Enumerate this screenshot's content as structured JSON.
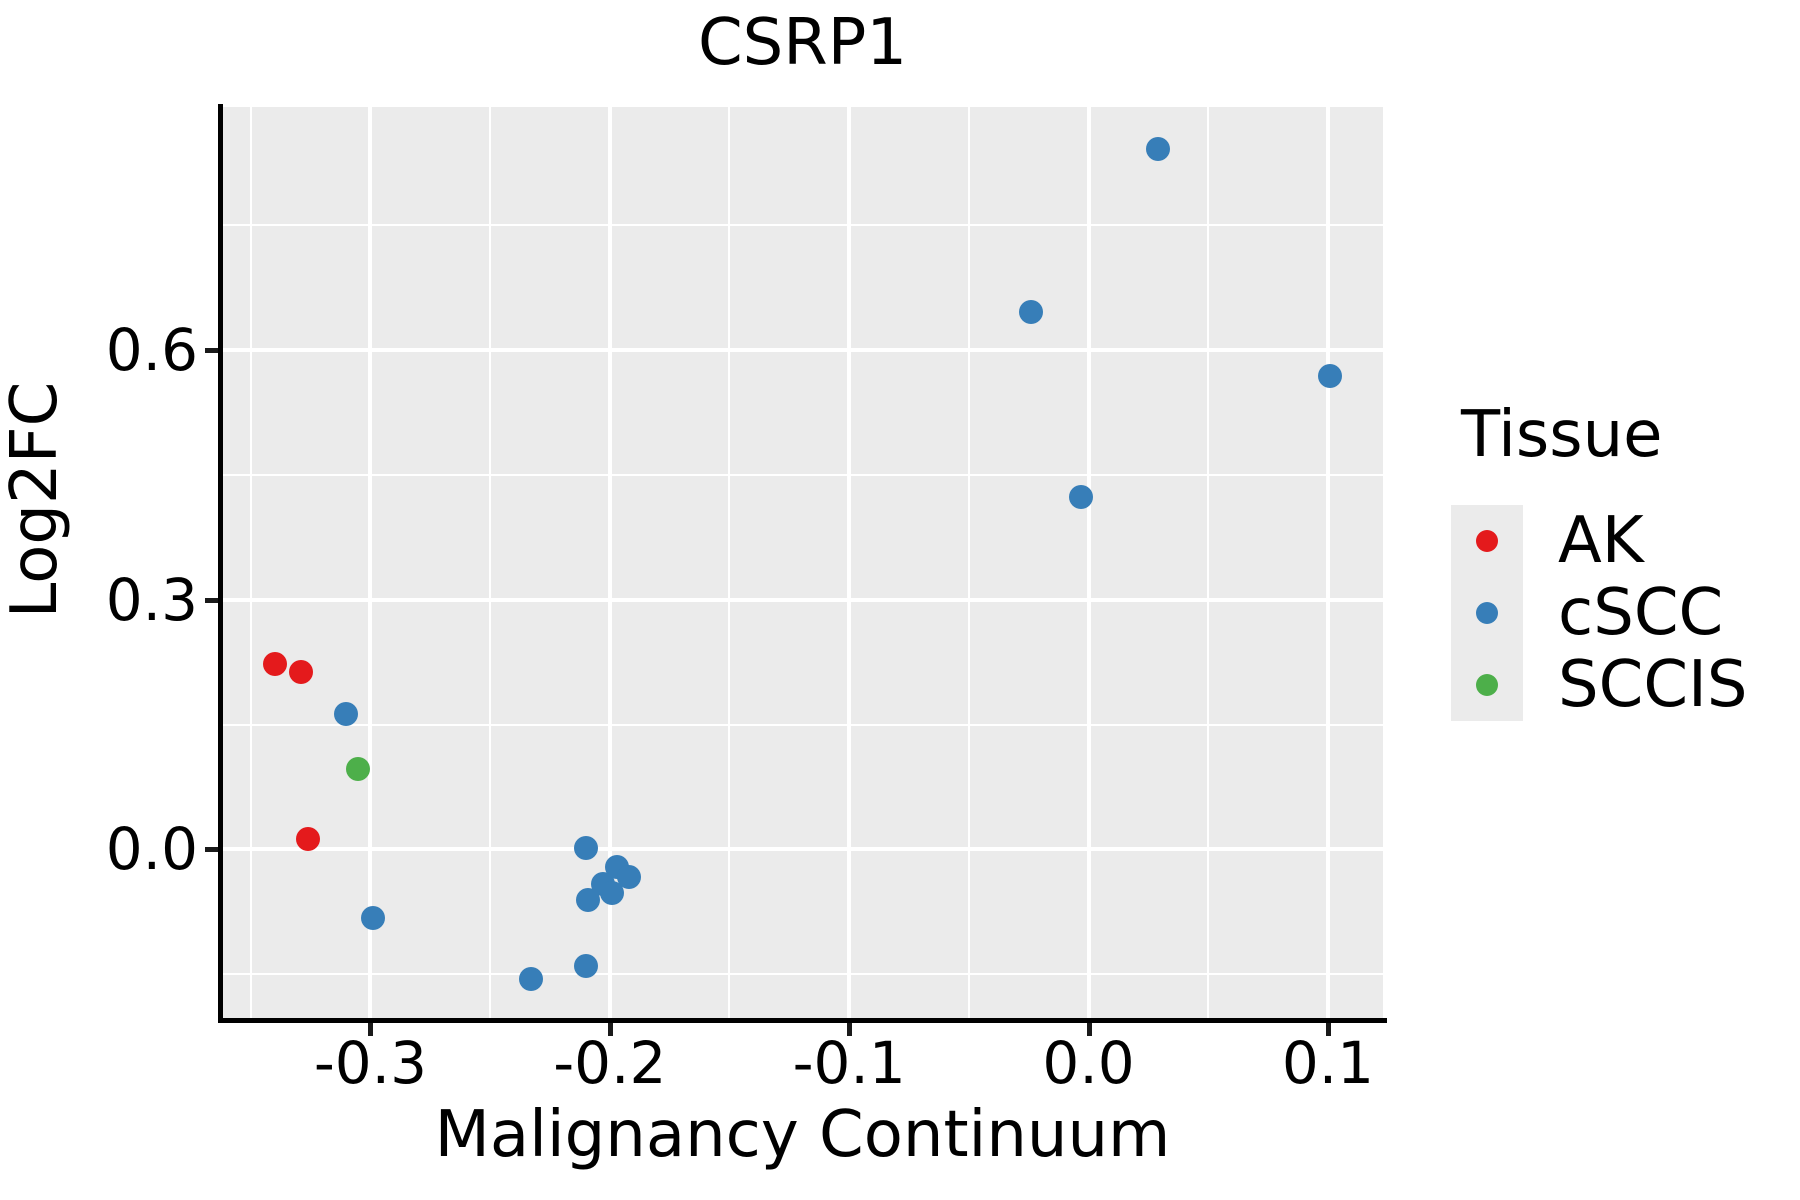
{
  "title": "CSRP1",
  "axes": {
    "x": {
      "label": "Malignancy Continuum",
      "range": [
        -0.362,
        0.123
      ],
      "ticks": [
        {
          "value": -0.3,
          "label": "-0.3"
        },
        {
          "value": -0.2,
          "label": "-0.2"
        },
        {
          "value": -0.1,
          "label": "-0.1"
        },
        {
          "value": 0.0,
          "label": "0.0"
        },
        {
          "value": 0.1,
          "label": "0.1"
        }
      ],
      "minor_gridlines": [
        -0.35,
        -0.25,
        -0.15,
        -0.05,
        0.05
      ]
    },
    "y": {
      "label": "Log2FC",
      "range": [
        -0.205,
        0.892
      ],
      "ticks": [
        {
          "value": 0.0,
          "label": "0.0"
        },
        {
          "value": 0.3,
          "label": "0.3"
        },
        {
          "value": 0.6,
          "label": "0.6"
        }
      ],
      "minor_gridlines": [
        -0.15,
        0.15,
        0.45,
        0.75
      ]
    }
  },
  "legend": {
    "title": "Tissue",
    "entries": [
      {
        "label": "AK",
        "color": "#E41A1C"
      },
      {
        "label": "cSCC",
        "color": "#377EB8"
      },
      {
        "label": "SCCIS",
        "color": "#4DAF4A"
      }
    ]
  },
  "colors": {
    "panel_background": "#EBEBEB",
    "gridline": "#FFFFFF",
    "axis_line": "#000000",
    "text": "#000000"
  },
  "chart_data": {
    "type": "scatter",
    "title": "CSRP1",
    "xlabel": "Malignancy Continuum",
    "ylabel": "Log2FC",
    "xlim": [
      -0.362,
      0.123
    ],
    "ylim": [
      -0.205,
      0.892
    ],
    "grid": "on",
    "legend_position": "right",
    "series": [
      {
        "name": "AK",
        "color": "#E41A1C",
        "points": [
          [
            -0.34,
            0.223
          ],
          [
            -0.329,
            0.213
          ],
          [
            -0.326,
            0.013
          ]
        ]
      },
      {
        "name": "cSCC",
        "color": "#377EB8",
        "points": [
          [
            -0.31,
            0.163
          ],
          [
            -0.299,
            -0.082
          ],
          [
            -0.21,
            0.002
          ],
          [
            -0.197,
            -0.021
          ],
          [
            -0.192,
            -0.033
          ],
          [
            -0.203,
            -0.041
          ],
          [
            -0.199,
            -0.052
          ],
          [
            -0.209,
            -0.061
          ],
          [
            -0.21,
            -0.14
          ],
          [
            -0.233,
            -0.156
          ],
          [
            -0.024,
            0.646
          ],
          [
            -0.003,
            0.424
          ],
          [
            0.029,
            0.842
          ],
          [
            0.101,
            0.569
          ]
        ]
      },
      {
        "name": "SCCIS",
        "color": "#4DAF4A",
        "points": [
          [
            -0.305,
            0.097
          ]
        ]
      }
    ]
  }
}
